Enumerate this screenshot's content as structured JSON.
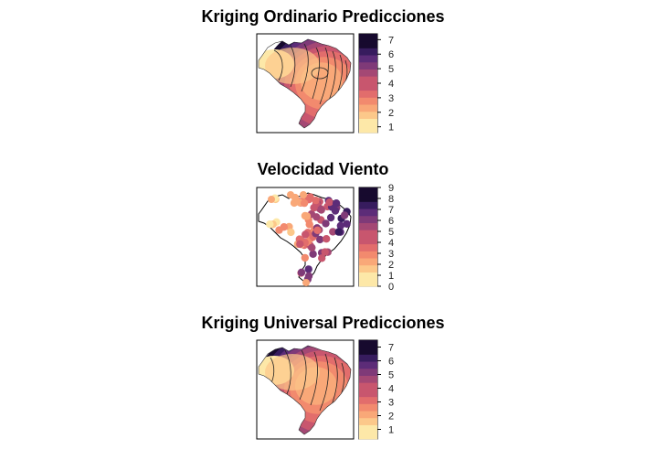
{
  "panels": [
    {
      "title": "Kriging Ordinario Predicciones",
      "kind": "contour",
      "legend_ticks": [
        "1",
        "2",
        "3",
        "4",
        "5",
        "6",
        "7"
      ],
      "legend_min": 0.6,
      "legend_max": 7.4
    },
    {
      "title": "Velocidad Viento",
      "kind": "points",
      "legend_ticks": [
        "0",
        "1",
        "2",
        "3",
        "4",
        "5",
        "6",
        "7",
        "8",
        "9"
      ],
      "legend_min": 0,
      "legend_max": 9
    },
    {
      "title": "Kriging Universal Predicciones",
      "kind": "contour",
      "legend_ticks": [
        "1",
        "2",
        "3",
        "4",
        "5",
        "6",
        "7"
      ],
      "legend_min": 0.3,
      "legend_max": 7.5
    }
  ],
  "palette": [
    "#fde8a8",
    "#fcc88a",
    "#f9a878",
    "#f28a6e",
    "#e26d6c",
    "#c8566e",
    "#a44874",
    "#7f3a78",
    "#5c2c78",
    "#371c5e",
    "#170a2e"
  ]
}
